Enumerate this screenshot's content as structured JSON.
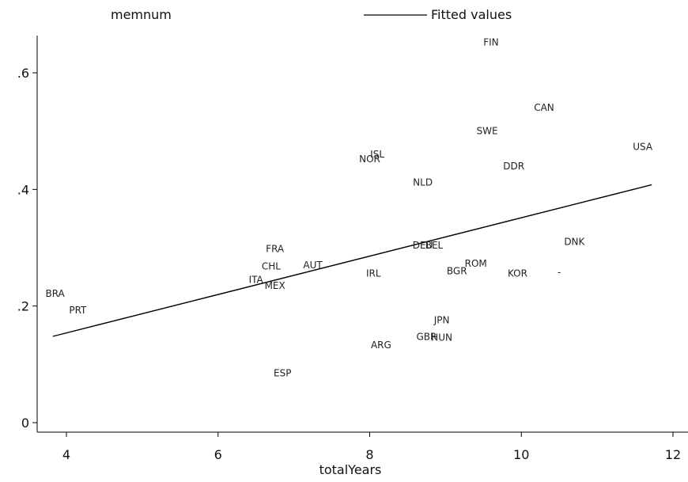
{
  "chart_data": {
    "type": "scatter",
    "title": "",
    "xlabel": "totalYears",
    "ylabel": "",
    "xlim": [
      3.7,
      12.1
    ],
    "ylim": [
      -0.02,
      0.67
    ],
    "x_ticks": [
      4,
      6,
      8,
      10,
      12
    ],
    "y_ticks": [
      0,
      0.2,
      0.4,
      0.6
    ],
    "x_tick_labels": [
      "4",
      "6",
      "8",
      "10",
      "12"
    ],
    "y_tick_labels": [
      "0",
      ".2",
      ".4",
      ".6"
    ],
    "grid": false,
    "legend": {
      "placement": "top",
      "entries": [
        {
          "label": "memnum",
          "kind": "marker-label"
        },
        {
          "label": "Fitted values",
          "kind": "line"
        }
      ]
    },
    "series": [
      {
        "name": "memnum",
        "kind": "labeled-points",
        "points": [
          {
            "label": "FIN",
            "x": 9.6,
            "y": 0.652
          },
          {
            "label": "CAN",
            "x": 10.3,
            "y": 0.54
          },
          {
            "label": "SWE",
            "x": 9.55,
            "y": 0.5
          },
          {
            "label": "USA",
            "x": 11.6,
            "y": 0.473
          },
          {
            "label": "ISL",
            "x": 8.1,
            "y": 0.46
          },
          {
            "label": "NOR",
            "x": 8.0,
            "y": 0.452
          },
          {
            "label": "DDR",
            "x": 9.9,
            "y": 0.44
          },
          {
            "label": "NLD",
            "x": 8.7,
            "y": 0.412
          },
          {
            "label": "DNK",
            "x": 10.7,
            "y": 0.31
          },
          {
            "label": "DEU",
            "x": 8.7,
            "y": 0.304
          },
          {
            "label": "BEL",
            "x": 8.85,
            "y": 0.304
          },
          {
            "label": "FRA",
            "x": 6.75,
            "y": 0.298
          },
          {
            "label": "AUT",
            "x": 7.25,
            "y": 0.27
          },
          {
            "label": "CHL",
            "x": 6.7,
            "y": 0.268
          },
          {
            "label": "ROM",
            "x": 9.4,
            "y": 0.273
          },
          {
            "label": "BGR",
            "x": 9.15,
            "y": 0.26
          },
          {
            "label": "KOR",
            "x": 9.95,
            "y": 0.256
          },
          {
            "label": "IRL",
            "x": 8.05,
            "y": 0.256
          },
          {
            "label": "ITA",
            "x": 6.5,
            "y": 0.245
          },
          {
            "label": "MEX",
            "x": 6.75,
            "y": 0.235
          },
          {
            "label": "BRA",
            "x": 3.85,
            "y": 0.221
          },
          {
            "label": "PRT",
            "x": 4.15,
            "y": 0.193
          },
          {
            "label": "JPN",
            "x": 8.95,
            "y": 0.176
          },
          {
            "label": "GBR",
            "x": 8.75,
            "y": 0.147
          },
          {
            "label": "HUN",
            "x": 8.95,
            "y": 0.146
          },
          {
            "label": "ARG",
            "x": 8.15,
            "y": 0.133
          },
          {
            "label": "ESP",
            "x": 6.85,
            "y": 0.085
          },
          {
            "label": "-",
            "x": 10.5,
            "y": 0.258
          }
        ]
      },
      {
        "name": "Fitted values",
        "kind": "line",
        "points": [
          {
            "x": 3.82,
            "y": 0.148
          },
          {
            "x": 11.72,
            "y": 0.408
          }
        ]
      }
    ]
  }
}
